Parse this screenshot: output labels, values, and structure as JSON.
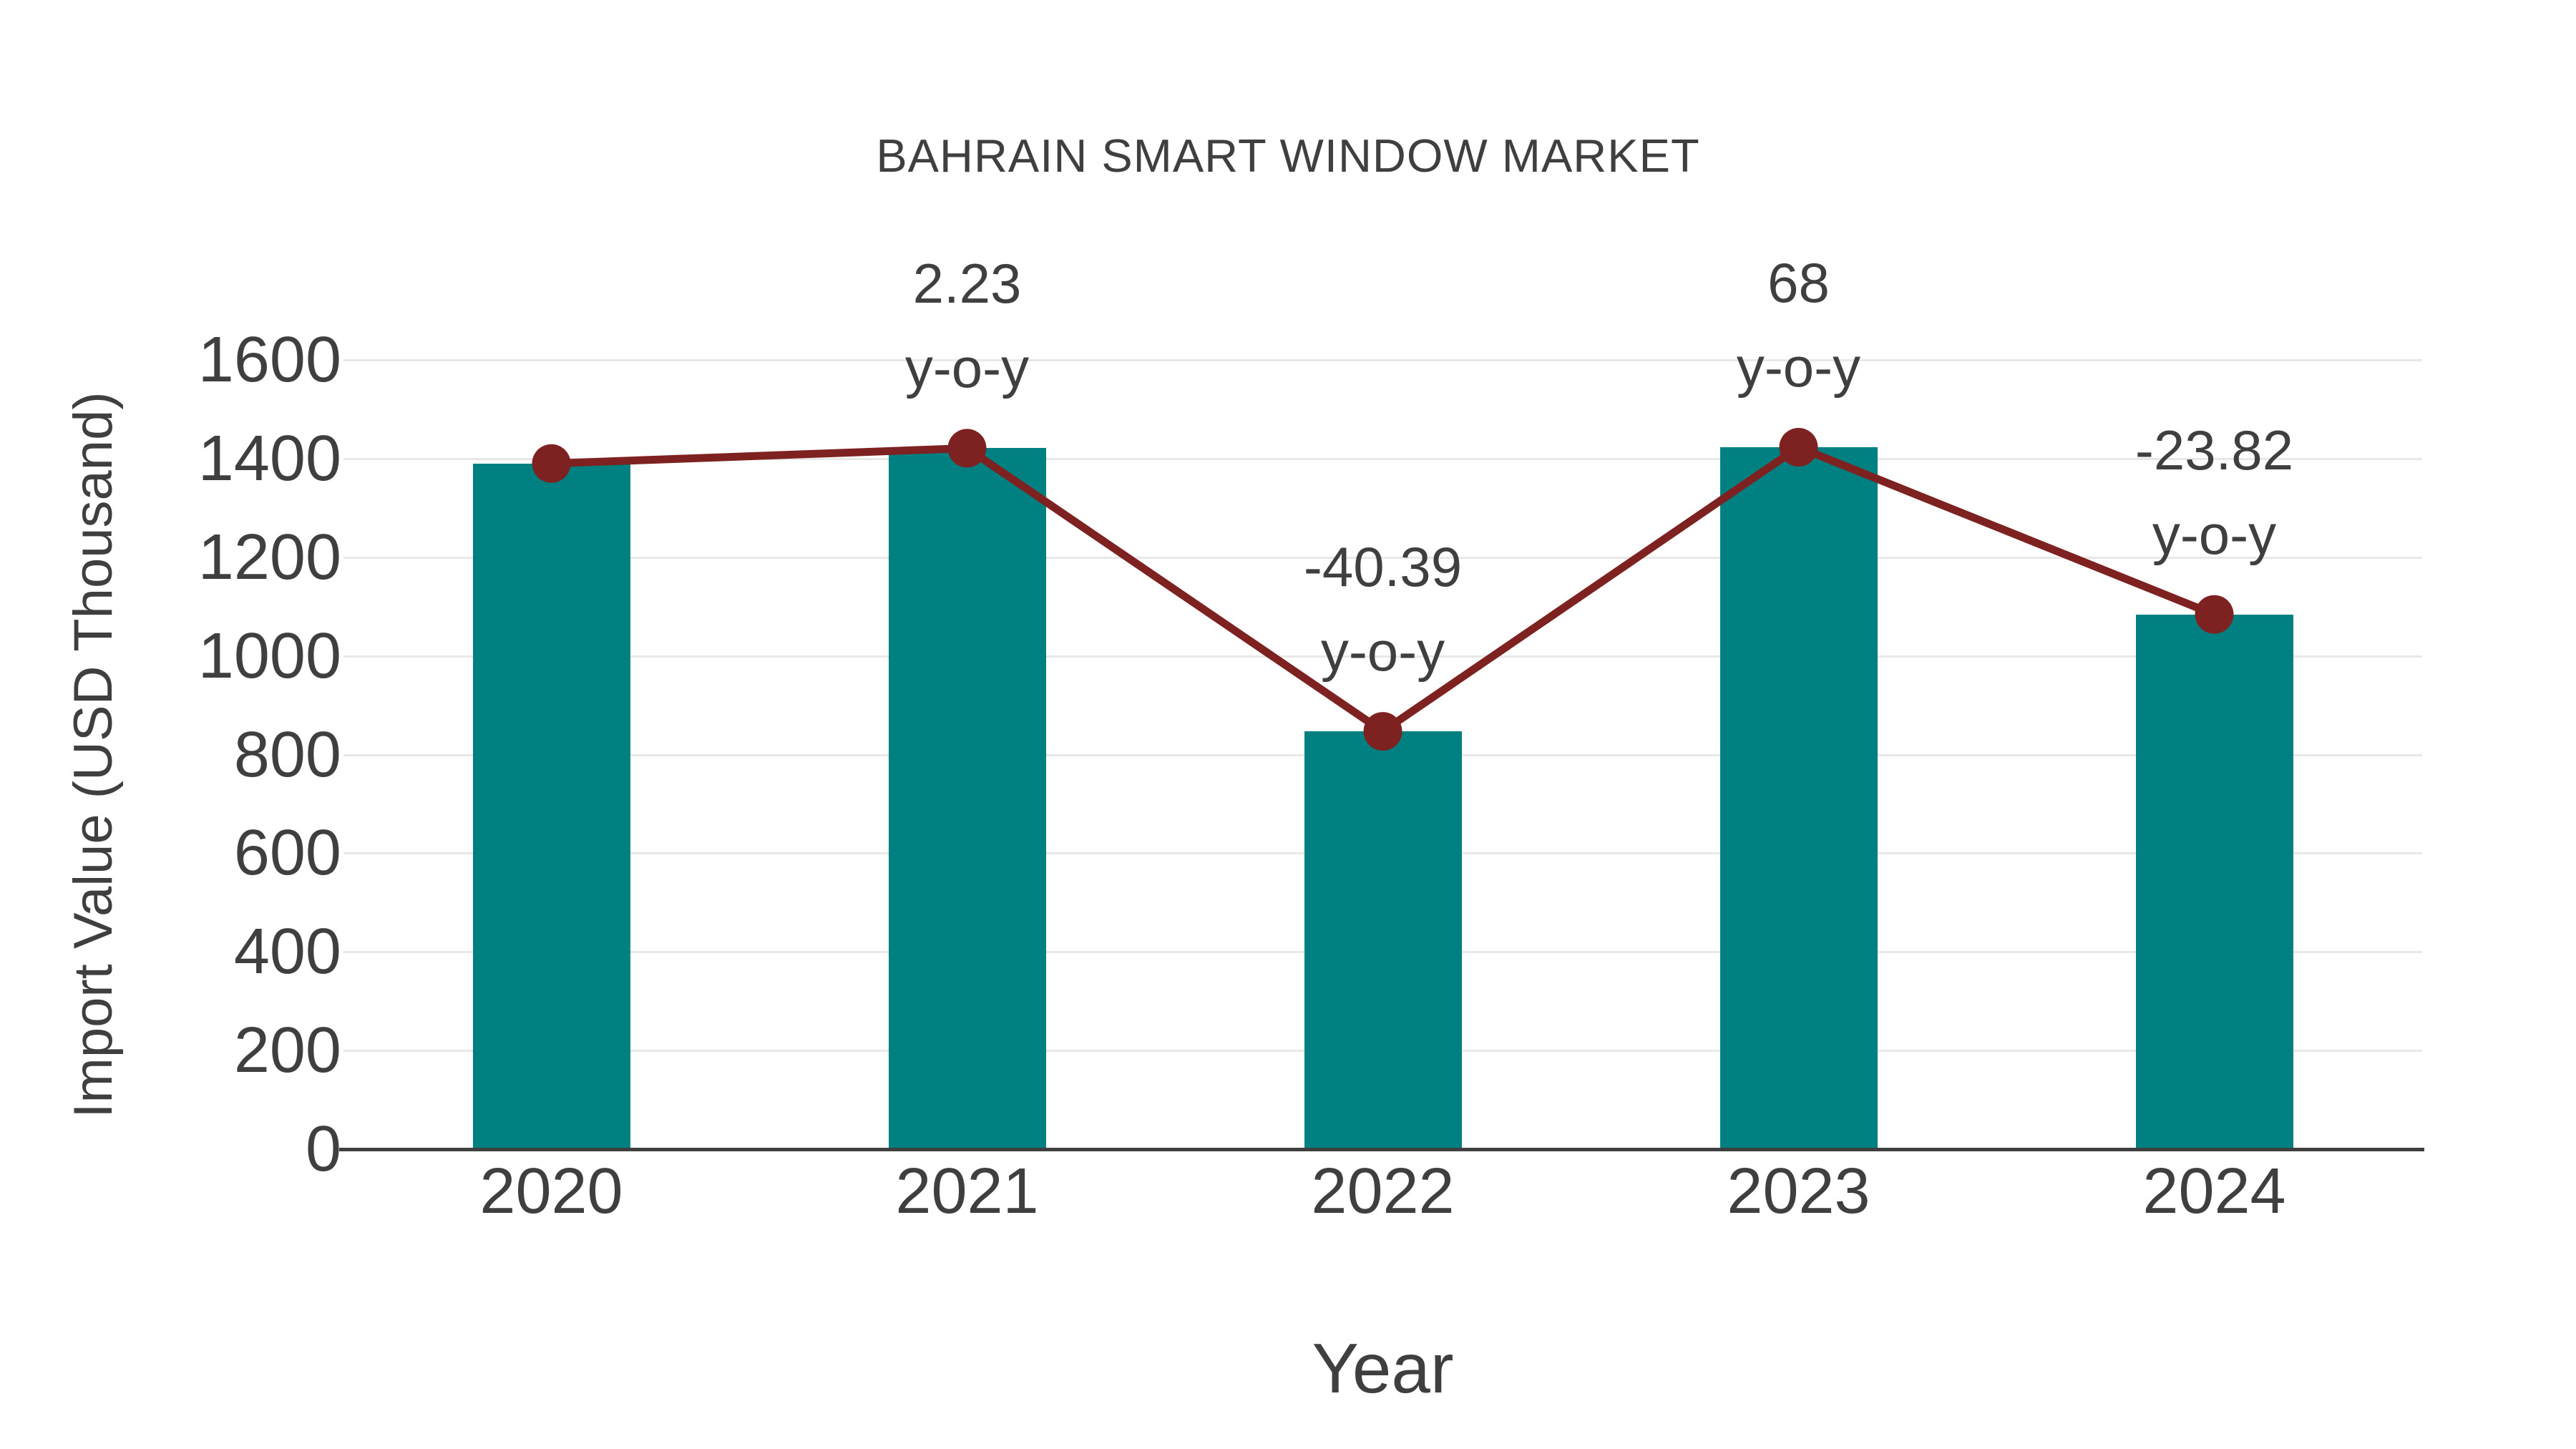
{
  "title": "BAHRAIN SMART WINDOW MARKET",
  "chart_data": {
    "type": "bar",
    "title": "BAHRAIN SMART WINDOW MARKET",
    "xlabel": "Year",
    "ylabel": "Import Value (USD Thousand)",
    "categories": [
      "2020",
      "2021",
      "2022",
      "2023",
      "2024"
    ],
    "series": [
      {
        "name": "Import Value bars",
        "type": "bar",
        "values": [
          1390,
          1421,
          847,
          1423,
          1084
        ]
      },
      {
        "name": "Import Value trend line",
        "type": "line",
        "values": [
          1390,
          1421,
          847,
          1423,
          1084
        ]
      }
    ],
    "annotations": [
      {
        "category": "2021",
        "value": "2.23",
        "label": "y-o-y"
      },
      {
        "category": "2022",
        "value": "-40.39",
        "label": "y-o-y"
      },
      {
        "category": "2023",
        "value": "68",
        "label": "y-o-y"
      },
      {
        "category": "2024",
        "value": "-23.82",
        "label": "y-o-y"
      }
    ],
    "yticks": [
      0,
      200,
      400,
      600,
      800,
      1000,
      1200,
      1400,
      1600
    ],
    "ylim": [
      0,
      1600
    ],
    "grid": true,
    "legend_position": "none",
    "colors": {
      "bar": "#008080",
      "line": "#7e2121",
      "grid": "#e8e8e8",
      "axis": "#3f3f3f",
      "text": "#3f3f3f"
    }
  }
}
